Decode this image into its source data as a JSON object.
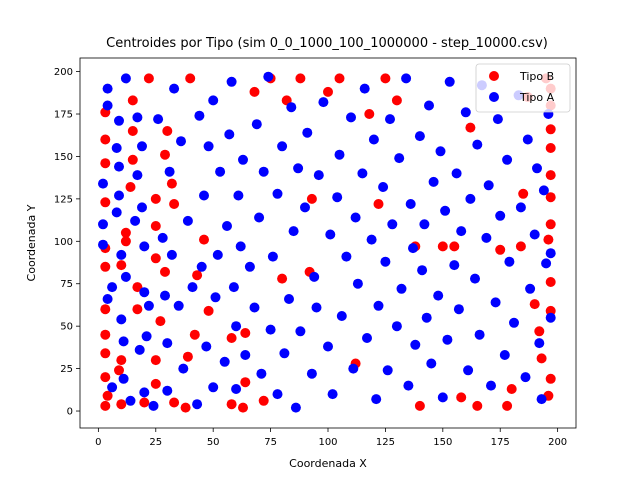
{
  "chart_data": {
    "type": "scatter",
    "title": "Centroides por Tipo (sim 0_0_1000_100_1000000 - step_10000.csv)",
    "xlabel": "Coordenada X",
    "ylabel": "Coordenada Y",
    "xlim": [
      -8,
      208
    ],
    "ylim": [
      -10,
      208
    ],
    "xticks": [
      0,
      25,
      50,
      75,
      100,
      125,
      150,
      175,
      200
    ],
    "yticks": [
      0,
      25,
      50,
      75,
      100,
      125,
      150,
      175,
      200
    ],
    "grid": false,
    "legend_position": "top-right",
    "series": [
      {
        "name": "Tipo B",
        "color": "#ff0000",
        "points": [
          [
            3,
            3
          ],
          [
            3,
            20
          ],
          [
            3,
            34
          ],
          [
            3,
            45
          ],
          [
            3,
            60
          ],
          [
            3,
            85
          ],
          [
            3,
            96
          ],
          [
            3,
            123
          ],
          [
            3,
            146
          ],
          [
            3,
            160
          ],
          [
            3,
            176
          ],
          [
            4,
            9
          ],
          [
            9,
            24
          ],
          [
            10,
            4
          ],
          [
            10,
            30
          ],
          [
            10,
            86
          ],
          [
            12,
            100
          ],
          [
            12,
            105
          ],
          [
            14,
            132
          ],
          [
            15,
            148
          ],
          [
            15,
            165
          ],
          [
            15,
            183
          ],
          [
            17,
            60
          ],
          [
            17,
            73
          ],
          [
            20,
            5
          ],
          [
            22,
            196
          ],
          [
            25,
            16
          ],
          [
            25,
            30
          ],
          [
            25,
            90
          ],
          [
            25,
            109
          ],
          [
            25,
            125
          ],
          [
            27,
            53
          ],
          [
            29,
            82
          ],
          [
            29,
            151
          ],
          [
            30,
            165
          ],
          [
            32,
            134
          ],
          [
            33,
            5
          ],
          [
            33,
            122
          ],
          [
            38,
            2
          ],
          [
            39,
            32
          ],
          [
            40,
            196
          ],
          [
            42,
            45
          ],
          [
            43,
            80
          ],
          [
            46,
            101
          ],
          [
            48,
            59
          ],
          [
            58,
            4
          ],
          [
            58,
            43
          ],
          [
            63,
            2
          ],
          [
            64,
            17
          ],
          [
            64,
            46
          ],
          [
            68,
            188
          ],
          [
            72,
            6
          ],
          [
            75,
            196
          ],
          [
            80,
            78
          ],
          [
            82,
            183
          ],
          [
            88,
            196
          ],
          [
            92,
            82
          ],
          [
            93,
            125
          ],
          [
            100,
            188
          ],
          [
            105,
            196
          ],
          [
            112,
            28
          ],
          [
            118,
            175
          ],
          [
            122,
            122
          ],
          [
            125,
            196
          ],
          [
            130,
            183
          ],
          [
            138,
            97
          ],
          [
            140,
            3
          ],
          [
            150,
            97
          ],
          [
            155,
            97
          ],
          [
            158,
            8
          ],
          [
            162,
            167
          ],
          [
            165,
            3
          ],
          [
            175,
            95
          ],
          [
            178,
            3
          ],
          [
            180,
            13
          ],
          [
            184,
            97
          ],
          [
            185,
            128
          ],
          [
            187,
            185
          ],
          [
            190,
            63
          ],
          [
            192,
            47
          ],
          [
            193,
            31
          ],
          [
            195,
            196
          ],
          [
            196,
            9
          ],
          [
            196,
            101
          ],
          [
            197,
            19
          ],
          [
            197,
            59
          ],
          [
            197,
            76
          ],
          [
            197,
            110
          ],
          [
            197,
            126
          ],
          [
            197,
            139
          ],
          [
            197,
            155
          ],
          [
            197,
            166
          ],
          [
            197,
            180
          ],
          [
            197,
            190
          ]
        ]
      },
      {
        "name": "Tipo A",
        "color": "#0000ff",
        "points": [
          [
            2,
            98
          ],
          [
            2,
            110
          ],
          [
            2,
            134
          ],
          [
            4,
            190
          ],
          [
            4,
            180
          ],
          [
            4,
            66
          ],
          [
            6,
            14
          ],
          [
            6,
            73
          ],
          [
            8,
            117
          ],
          [
            8,
            155
          ],
          [
            9,
            144
          ],
          [
            9,
            127
          ],
          [
            9,
            171
          ],
          [
            10,
            92
          ],
          [
            10,
            54
          ],
          [
            11,
            41
          ],
          [
            11,
            19
          ],
          [
            12,
            79
          ],
          [
            12,
            196
          ],
          [
            14,
            6
          ],
          [
            16,
            112
          ],
          [
            17,
            139
          ],
          [
            17,
            173
          ],
          [
            18,
            36
          ],
          [
            19,
            156
          ],
          [
            19,
            120
          ],
          [
            20,
            11
          ],
          [
            20,
            97
          ],
          [
            20,
            70
          ],
          [
            21,
            44
          ],
          [
            22,
            62
          ],
          [
            24,
            3
          ],
          [
            26,
            172
          ],
          [
            28,
            102
          ],
          [
            29,
            68
          ],
          [
            30,
            12
          ],
          [
            30,
            40
          ],
          [
            31,
            141
          ],
          [
            32,
            92
          ],
          [
            33,
            190
          ],
          [
            35,
            62
          ],
          [
            36,
            159
          ],
          [
            37,
            25
          ],
          [
            39,
            112
          ],
          [
            41,
            73
          ],
          [
            43,
            4
          ],
          [
            44,
            174
          ],
          [
            45,
            85
          ],
          [
            46,
            127
          ],
          [
            47,
            38
          ],
          [
            48,
            156
          ],
          [
            50,
            14
          ],
          [
            50,
            183
          ],
          [
            51,
            67
          ],
          [
            52,
            92
          ],
          [
            53,
            141
          ],
          [
            55,
            29
          ],
          [
            56,
            109
          ],
          [
            57,
            163
          ],
          [
            58,
            194
          ],
          [
            59,
            73
          ],
          [
            60,
            50
          ],
          [
            60,
            13
          ],
          [
            61,
            127
          ],
          [
            62,
            97
          ],
          [
            63,
            148
          ],
          [
            64,
            33
          ],
          [
            66,
            85
          ],
          [
            68,
            61
          ],
          [
            69,
            169
          ],
          [
            70,
            114
          ],
          [
            71,
            22
          ],
          [
            72,
            141
          ],
          [
            74,
            197
          ],
          [
            75,
            48
          ],
          [
            76,
            91
          ],
          [
            78,
            10
          ],
          [
            78,
            128
          ],
          [
            80,
            156
          ],
          [
            81,
            34
          ],
          [
            83,
            66
          ],
          [
            84,
            179
          ],
          [
            85,
            106
          ],
          [
            86,
            2
          ],
          [
            87,
            143
          ],
          [
            88,
            47
          ],
          [
            90,
            120
          ],
          [
            91,
            164
          ],
          [
            93,
            22
          ],
          [
            94,
            79
          ],
          [
            95,
            61
          ],
          [
            96,
            139
          ],
          [
            98,
            182
          ],
          [
            100,
            38
          ],
          [
            101,
            104
          ],
          [
            102,
            10
          ],
          [
            104,
            126
          ],
          [
            105,
            151
          ],
          [
            106,
            56
          ],
          [
            108,
            91
          ],
          [
            110,
            173
          ],
          [
            111,
            25
          ],
          [
            112,
            114
          ],
          [
            113,
            75
          ],
          [
            115,
            140
          ],
          [
            116,
            190
          ],
          [
            117,
            43
          ],
          [
            119,
            101
          ],
          [
            120,
            160
          ],
          [
            121,
            7
          ],
          [
            122,
            62
          ],
          [
            124,
            132
          ],
          [
            125,
            88
          ],
          [
            126,
            24
          ],
          [
            127,
            172
          ],
          [
            128,
            110
          ],
          [
            130,
            50
          ],
          [
            131,
            149
          ],
          [
            132,
            72
          ],
          [
            134,
            196
          ],
          [
            135,
            15
          ],
          [
            136,
            122
          ],
          [
            137,
            96
          ],
          [
            138,
            39
          ],
          [
            140,
            162
          ],
          [
            141,
            83
          ],
          [
            142,
            110
          ],
          [
            143,
            55
          ],
          [
            144,
            180
          ],
          [
            145,
            28
          ],
          [
            146,
            135
          ],
          [
            148,
            68
          ],
          [
            149,
            153
          ],
          [
            150,
            8
          ],
          [
            151,
            118
          ],
          [
            152,
            42
          ],
          [
            153,
            194
          ],
          [
            155,
            86
          ],
          [
            156,
            140
          ],
          [
            157,
            60
          ],
          [
            158,
            106
          ],
          [
            160,
            176
          ],
          [
            161,
            24
          ],
          [
            162,
            125
          ],
          [
            164,
            78
          ],
          [
            165,
            157
          ],
          [
            166,
            45
          ],
          [
            167,
            192
          ],
          [
            169,
            102
          ],
          [
            170,
            133
          ],
          [
            171,
            15
          ],
          [
            173,
            64
          ],
          [
            174,
            172
          ],
          [
            175,
            115
          ],
          [
            177,
            33
          ],
          [
            178,
            148
          ],
          [
            179,
            88
          ],
          [
            181,
            52
          ],
          [
            183,
            186
          ],
          [
            184,
            120
          ],
          [
            186,
            20
          ],
          [
            187,
            160
          ],
          [
            188,
            72
          ],
          [
            190,
            104
          ],
          [
            191,
            143
          ],
          [
            192,
            40
          ],
          [
            193,
            7
          ],
          [
            194,
            130
          ],
          [
            195,
            87
          ],
          [
            196,
            175
          ],
          [
            197,
            55
          ],
          [
            197,
            93
          ]
        ]
      }
    ]
  }
}
